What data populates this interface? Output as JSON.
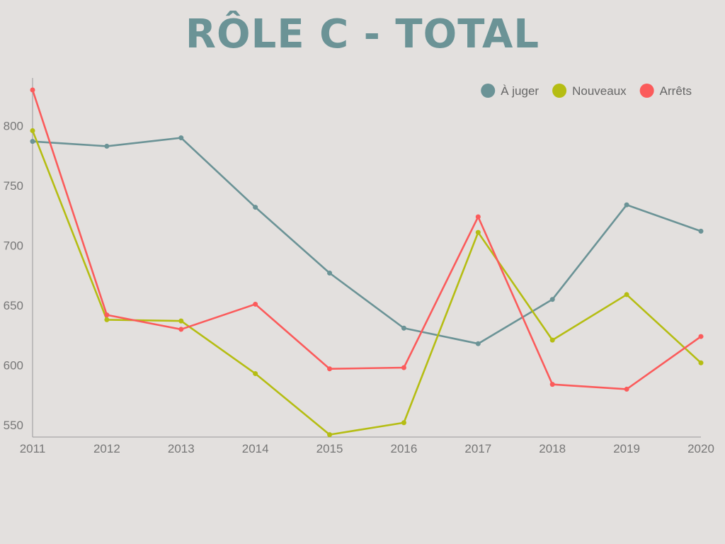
{
  "chart_data": {
    "type": "line",
    "title": "RÔLE C - TOTAL",
    "x": [
      "2011",
      "2012",
      "2013",
      "2014",
      "2015",
      "2016",
      "2017",
      "2018",
      "2019",
      "2020"
    ],
    "ylim": [
      540,
      830
    ],
    "yticks": [
      550,
      600,
      650,
      700,
      750,
      800
    ],
    "grid": false,
    "legend_position": "top-right",
    "series": [
      {
        "name": "À juger",
        "color": "#6b9396",
        "values": [
          787,
          783,
          790,
          732,
          677,
          631,
          618,
          655,
          734,
          712
        ]
      },
      {
        "name": "Nouveaux",
        "color": "#b5bd13",
        "values": [
          796,
          638,
          637,
          593,
          542,
          552,
          711,
          621,
          659,
          602
        ]
      },
      {
        "name": "Arrêts",
        "color": "#fb5b5b",
        "values": [
          830,
          642,
          630,
          651,
          597,
          598,
          724,
          584,
          580,
          624
        ]
      }
    ]
  },
  "colors": {
    "title": "#6b9396",
    "axis": "#999999",
    "background": "#e3e0de"
  }
}
